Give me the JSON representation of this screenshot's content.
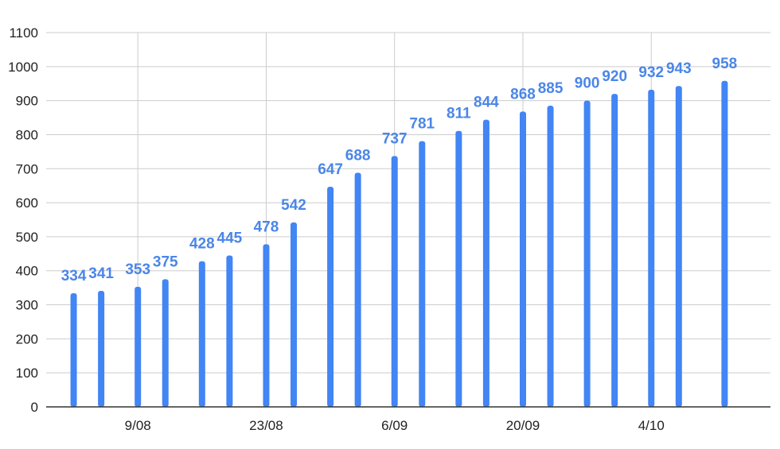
{
  "colors": {
    "bar": "#4285f4",
    "data_label": "#4a86e8",
    "grid": "#cccccc",
    "axis": "#333333",
    "text": "#222222",
    "background": "#ffffff"
  },
  "chart_data": {
    "type": "bar",
    "title": "",
    "xlabel": "",
    "ylabel": "",
    "ylim": [
      0,
      1100
    ],
    "y_ticks": [
      0,
      100,
      200,
      300,
      400,
      500,
      600,
      700,
      800,
      900,
      1000,
      1100
    ],
    "grid": true,
    "legend": "none",
    "x_range": [
      "2021-07-30",
      "2021-10-17"
    ],
    "x_ticks": [
      {
        "date": "2021-08-09",
        "label": "9/08"
      },
      {
        "date": "2021-08-23",
        "label": "23/08"
      },
      {
        "date": "2021-09-06",
        "label": "6/09"
      },
      {
        "date": "2021-09-20",
        "label": "20/09"
      },
      {
        "date": "2021-10-04",
        "label": "4/10"
      }
    ],
    "points": [
      {
        "date": "2021-08-02",
        "value": 334
      },
      {
        "date": "2021-08-05",
        "value": 341
      },
      {
        "date": "2021-08-09",
        "value": 353
      },
      {
        "date": "2021-08-12",
        "value": 375
      },
      {
        "date": "2021-08-16",
        "value": 428
      },
      {
        "date": "2021-08-19",
        "value": 445
      },
      {
        "date": "2021-08-23",
        "value": 478
      },
      {
        "date": "2021-08-26",
        "value": 542
      },
      {
        "date": "2021-08-30",
        "value": 647
      },
      {
        "date": "2021-09-02",
        "value": 688
      },
      {
        "date": "2021-09-06",
        "value": 737
      },
      {
        "date": "2021-09-09",
        "value": 781
      },
      {
        "date": "2021-09-13",
        "value": 811
      },
      {
        "date": "2021-09-16",
        "value": 844
      },
      {
        "date": "2021-09-20",
        "value": 868
      },
      {
        "date": "2021-09-23",
        "value": 885
      },
      {
        "date": "2021-09-27",
        "value": 900
      },
      {
        "date": "2021-09-30",
        "value": 920
      },
      {
        "date": "2021-10-04",
        "value": 932
      },
      {
        "date": "2021-10-07",
        "value": 943
      },
      {
        "date": "2021-10-12",
        "value": 958
      }
    ]
  }
}
